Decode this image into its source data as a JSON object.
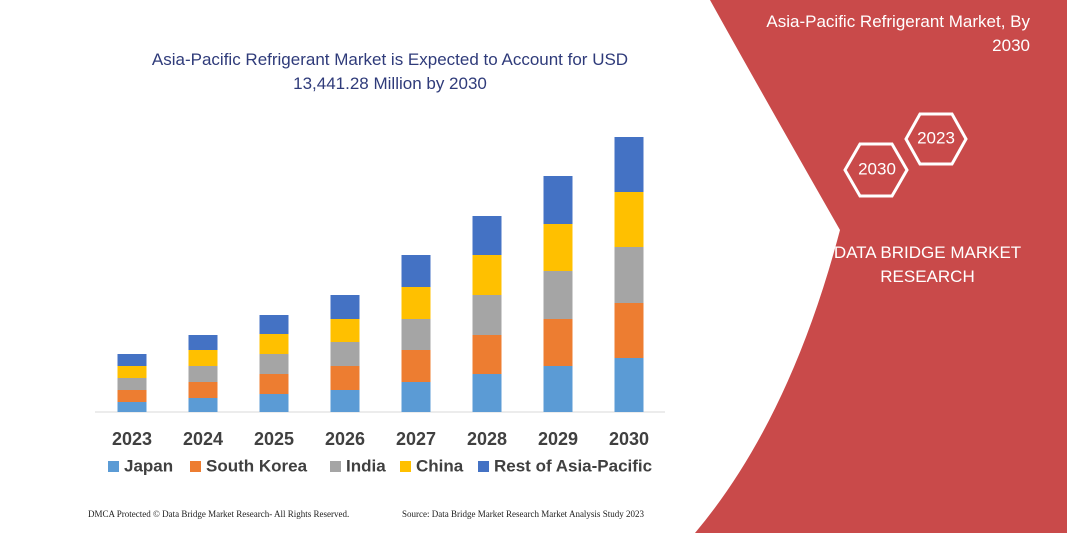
{
  "chart_data": {
    "type": "stacked-bar",
    "title": "Asia-Pacific Refrigerant Market is Expected to Account for USD 13,441.28 Million by 2030",
    "categories": [
      "2023",
      "2024",
      "2025",
      "2026",
      "2027",
      "2028",
      "2029",
      "2030"
    ],
    "series": [
      {
        "name": "Japan",
        "color": "#5b9bd5",
        "values": [
          10,
          14,
          18,
          22,
          30,
          38,
          46,
          54
        ]
      },
      {
        "name": "South Korea",
        "color": "#ed7d31",
        "values": [
          12,
          16,
          20,
          24,
          32,
          39,
          47,
          55
        ]
      },
      {
        "name": "India",
        "color": "#a5a5a5",
        "values": [
          12,
          16,
          20,
          24,
          31,
          40,
          48,
          56
        ]
      },
      {
        "name": "China",
        "color": "#ffc000",
        "values": [
          12,
          16,
          20,
          23,
          32,
          40,
          47,
          55
        ]
      },
      {
        "name": "Rest of Asia-Pacific",
        "color": "#4472c4",
        "values": [
          12,
          15,
          19,
          24,
          32,
          39,
          48,
          55
        ]
      }
    ]
  },
  "panel": {
    "title": "Asia-Pacific Refrigerant Market, By 2030",
    "hexagons": [
      "2023",
      "2030"
    ],
    "brand": "DATA BRIDGE MARKET RESEARCH"
  },
  "footer": {
    "left": "DMCA Protected © Data Bridge Market Research- All Rights Reserved.",
    "right": "Source: Data Bridge Market Research  Market Analysis Study 2023"
  }
}
